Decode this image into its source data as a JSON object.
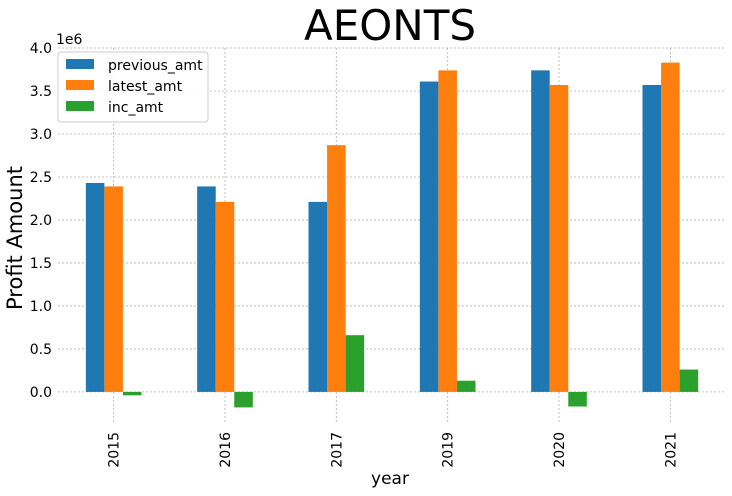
{
  "chart_data": {
    "type": "bar",
    "title": "AEONTS",
    "xlabel": "year",
    "ylabel": "Profit Amount",
    "y_scale_label": "1e6",
    "categories": [
      "2015",
      "2016",
      "2017",
      "2019",
      "2020",
      "2021"
    ],
    "series": [
      {
        "name": "previous_amt",
        "color": "#1f77b4",
        "values": [
          2430000,
          2390000,
          2210000,
          3610000,
          3740000,
          3570000
        ]
      },
      {
        "name": "latest_amt",
        "color": "#ff7f0e",
        "values": [
          2390000,
          2210000,
          2870000,
          3740000,
          3570000,
          3830000
        ]
      },
      {
        "name": "inc_amt",
        "color": "#2ca02c",
        "values": [
          -40000,
          -180000,
          660000,
          130000,
          -170000,
          260000
        ]
      }
    ],
    "ylim": [
      -350000,
      4000000
    ],
    "yticks": [
      0,
      500000,
      1000000,
      1500000,
      2000000,
      2500000,
      3000000,
      3500000,
      4000000
    ],
    "ytick_labels": [
      "0.0",
      "0.5",
      "1.0",
      "1.5",
      "2.0",
      "2.5",
      "3.0",
      "3.5",
      "4.0"
    ],
    "grid": true,
    "legend_position": "top-left"
  }
}
